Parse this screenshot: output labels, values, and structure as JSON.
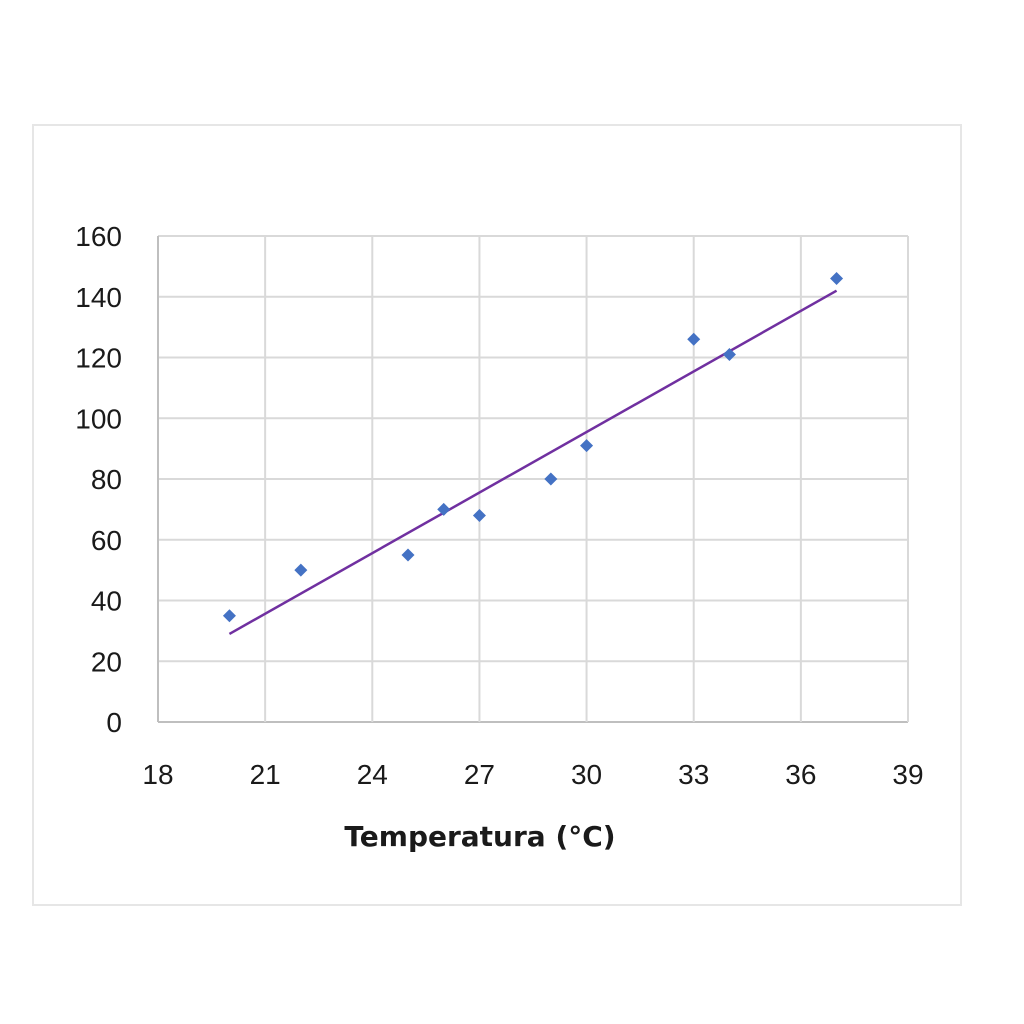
{
  "chart_data": {
    "type": "scatter",
    "title": "",
    "xlabel": "Temperatura (°C)",
    "ylabel": "",
    "xlim": [
      18,
      39
    ],
    "ylim": [
      0,
      160
    ],
    "x_ticks": [
      "18",
      "21",
      "24",
      "27",
      "30",
      "33",
      "36",
      "39"
    ],
    "y_ticks": [
      "0",
      "20",
      "40",
      "60",
      "80",
      "100",
      "120",
      "140",
      "160"
    ],
    "grid": true,
    "legend": "none",
    "series": [
      {
        "x": [
          20,
          22,
          25,
          26,
          27,
          29,
          30,
          33,
          34,
          37
        ],
        "y": [
          35,
          50,
          55,
          70,
          68,
          80,
          91,
          126,
          121,
          146
        ],
        "marker": "diamond",
        "color": "#4472C4"
      }
    ],
    "trendline": {
      "type": "linear",
      "x": [
        20,
        37
      ],
      "y": [
        29,
        142
      ],
      "color": "#7030A0"
    }
  }
}
